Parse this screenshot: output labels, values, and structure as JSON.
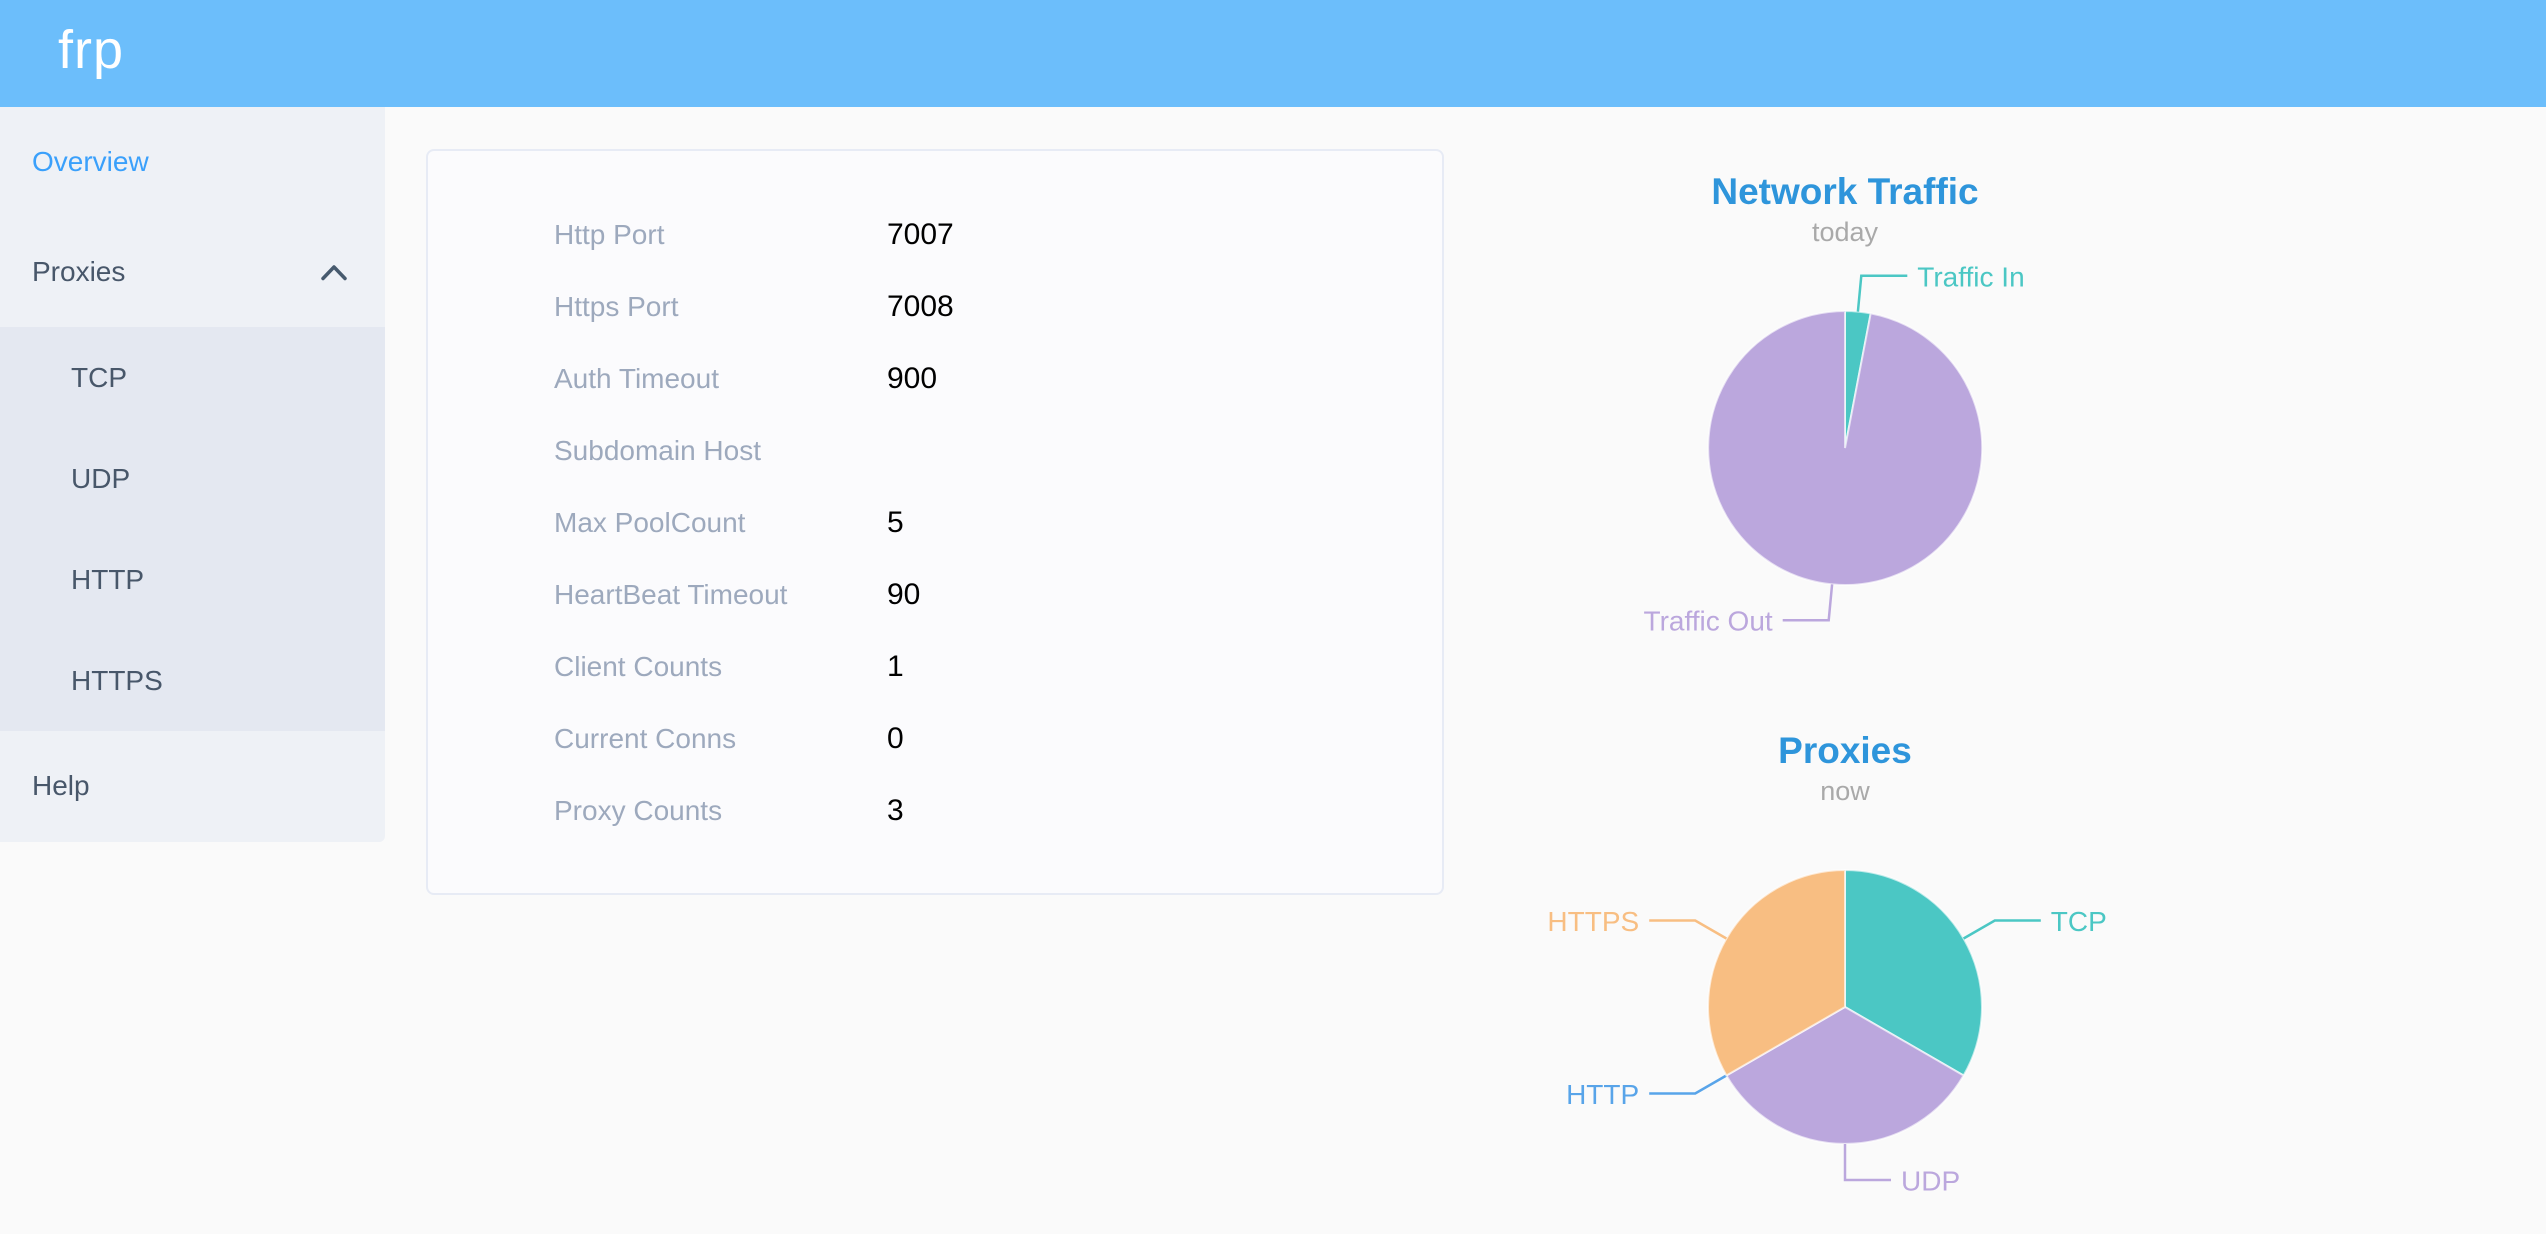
{
  "header": {
    "logo": "frp"
  },
  "sidebar": {
    "overview_label": "Overview",
    "proxies_label": "Proxies",
    "submenu": [
      "TCP",
      "UDP",
      "HTTP",
      "HTTPS"
    ],
    "help_label": "Help"
  },
  "overview_panel": {
    "rows": [
      {
        "label": "Http Port",
        "value": "7007"
      },
      {
        "label": "Https Port",
        "value": "7008"
      },
      {
        "label": "Auth Timeout",
        "value": "900"
      },
      {
        "label": "Subdomain Host",
        "value": ""
      },
      {
        "label": "Max PoolCount",
        "value": "5"
      },
      {
        "label": "HeartBeat Timeout",
        "value": "90"
      },
      {
        "label": "Client Counts",
        "value": "1"
      },
      {
        "label": "Current Conns",
        "value": "0"
      },
      {
        "label": "Proxy Counts",
        "value": "3"
      }
    ]
  },
  "chart_data": [
    {
      "type": "pie",
      "title": "Network Traffic",
      "subtitle": "today",
      "legend_position": "outside-callout-labels",
      "series": [
        {
          "name": "Traffic In",
          "value": 3,
          "color": "#4bc7c4"
        },
        {
          "name": "Traffic Out",
          "value": 97,
          "color": "#bba7dd"
        }
      ]
    },
    {
      "type": "pie",
      "title": "Proxies",
      "subtitle": "now",
      "legend_position": "outside-callout-labels",
      "series": [
        {
          "name": "TCP",
          "value": 1,
          "color": "#4bc7c4"
        },
        {
          "name": "UDP",
          "value": 1,
          "color": "#bba7dd"
        },
        {
          "name": "HTTP",
          "value": 0,
          "color": "#58a4e9"
        },
        {
          "name": "HTTPS",
          "value": 1,
          "color": "#f8be82"
        }
      ]
    }
  ],
  "theme": {
    "header_bg": "#6cbefb",
    "sidebar_bg": "#eef1f6",
    "submenu_bg": "#e4e8f1",
    "menu_text": "#48576a",
    "menu_active": "#3aa0fb",
    "chart_title": "#2e95db",
    "chart_subtitle": "#a9a9a9",
    "panel_label": "#9da9bd",
    "panel_value": "#000000"
  }
}
